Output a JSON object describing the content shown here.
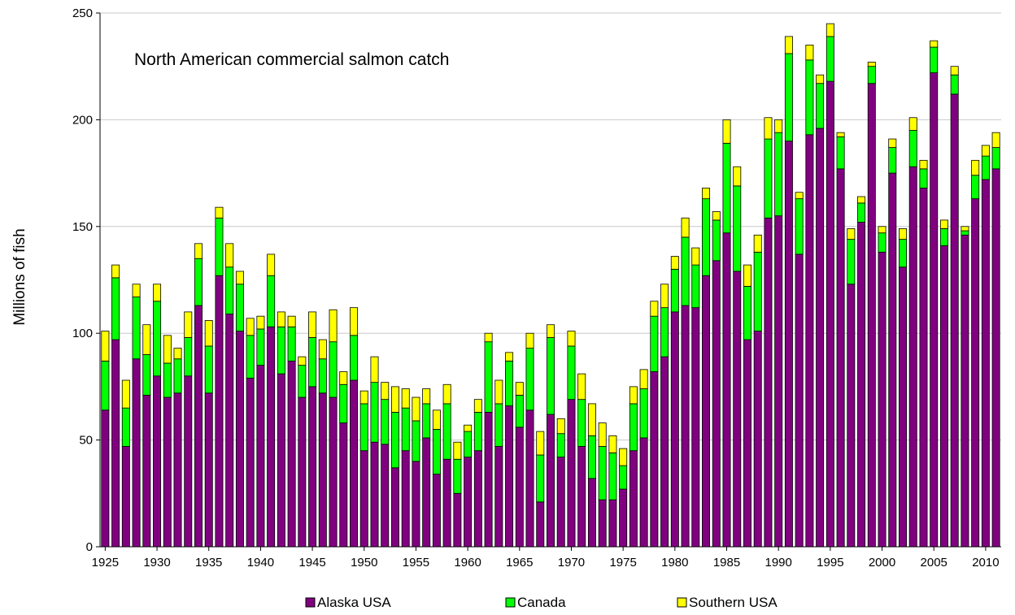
{
  "chart_data": {
    "type": "bar",
    "stacked": true,
    "title": "North American commercial salmon catch",
    "ylabel": "Millions of fish",
    "xlabel": "",
    "ylim": [
      0,
      250
    ],
    "yticks": [
      "0",
      "50",
      "100",
      "150",
      "200",
      "250"
    ],
    "xtick_labels": [
      "1925",
      "1930",
      "1935",
      "1940",
      "1945",
      "1950",
      "1955",
      "1960",
      "1965",
      "1970",
      "1975",
      "1980",
      "1985",
      "1990",
      "1995",
      "2000",
      "2005",
      "2010"
    ],
    "grid": "horizontal",
    "legend_position": "bottom",
    "x": [
      1925,
      1926,
      1927,
      1928,
      1929,
      1930,
      1931,
      1932,
      1933,
      1934,
      1935,
      1936,
      1937,
      1938,
      1939,
      1940,
      1941,
      1942,
      1943,
      1944,
      1945,
      1946,
      1947,
      1948,
      1949,
      1950,
      1951,
      1952,
      1953,
      1954,
      1955,
      1956,
      1957,
      1958,
      1959,
      1960,
      1961,
      1962,
      1963,
      1964,
      1965,
      1966,
      1967,
      1968,
      1969,
      1970,
      1971,
      1972,
      1973,
      1974,
      1975,
      1976,
      1977,
      1978,
      1979,
      1980,
      1981,
      1982,
      1983,
      1984,
      1985,
      1986,
      1987,
      1988,
      1989,
      1990,
      1991,
      1992,
      1993,
      1994,
      1995,
      1996,
      1997,
      1998,
      1999,
      2000,
      2001,
      2002,
      2003,
      2004,
      2005,
      2006,
      2007,
      2008,
      2009,
      2010,
      2011
    ],
    "series": [
      {
        "name": "Alaska USA",
        "color": "#800080",
        "values": [
          64,
          97,
          47,
          88,
          71,
          80,
          70,
          72,
          80,
          113,
          72,
          127,
          109,
          101,
          79,
          85,
          103,
          81,
          87,
          70,
          75,
          72,
          70,
          58,
          78,
          45,
          49,
          48,
          37,
          45,
          40,
          51,
          34,
          41,
          25,
          42,
          45,
          63,
          47,
          66,
          56,
          64,
          21,
          62,
          42,
          69,
          47,
          32,
          22,
          22,
          27,
          45,
          51,
          82,
          89,
          110,
          113,
          112,
          127,
          134,
          147,
          129,
          97,
          101,
          154,
          155,
          190,
          137,
          193,
          196,
          218,
          177,
          123,
          152,
          217,
          138,
          175,
          131,
          178,
          168,
          222,
          141,
          212,
          146,
          163,
          172,
          177
        ]
      },
      {
        "name": "Canada",
        "color": "#00ff00",
        "values": [
          23,
          29,
          18,
          29,
          19,
          35,
          16,
          16,
          18,
          22,
          22,
          27,
          22,
          22,
          20,
          17,
          24,
          22,
          16,
          15,
          23,
          16,
          26,
          18,
          21,
          22,
          28,
          21,
          26,
          20,
          19,
          16,
          21,
          26,
          16,
          12,
          18,
          33,
          20,
          21,
          15,
          29,
          22,
          36,
          11,
          25,
          22,
          20,
          25,
          22,
          11,
          22,
          23,
          26,
          23,
          20,
          32,
          20,
          36,
          19,
          42,
          40,
          25,
          37,
          37,
          39,
          41,
          26,
          35,
          21,
          21,
          15,
          21,
          9,
          8,
          9,
          12,
          13,
          17,
          9,
          12,
          8,
          9,
          2,
          11,
          11,
          10
        ]
      },
      {
        "name": "Southern USA",
        "color": "#ffff00",
        "values": [
          14,
          6,
          13,
          6,
          14,
          8,
          13,
          5,
          12,
          7,
          12,
          5,
          11,
          6,
          8,
          6,
          10,
          7,
          5,
          4,
          12,
          9,
          15,
          6,
          13,
          6,
          12,
          8,
          12,
          9,
          11,
          7,
          9,
          9,
          8,
          3,
          6,
          4,
          11,
          4,
          6,
          7,
          11,
          6,
          7,
          7,
          12,
          15,
          11,
          8,
          8,
          8,
          9,
          7,
          11,
          6,
          9,
          8,
          5,
          4,
          11,
          9,
          10,
          8,
          10,
          6,
          8,
          3,
          7,
          4,
          6,
          2,
          5,
          3,
          2,
          3,
          4,
          5,
          6,
          4,
          3,
          4,
          4,
          2,
          7,
          5,
          7
        ]
      }
    ]
  }
}
